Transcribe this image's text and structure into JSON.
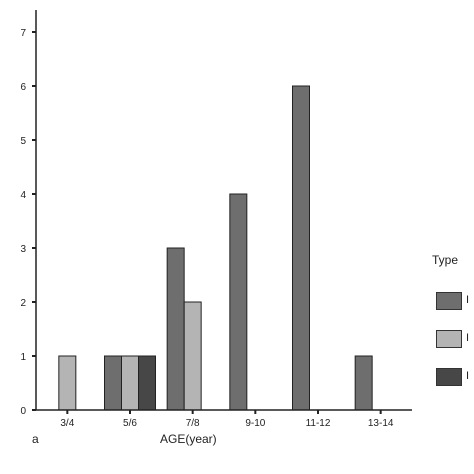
{
  "chart_data": {
    "type": "bar",
    "panel_label": "a",
    "xlabel": "AGE(year)",
    "ylabel": "",
    "ylim": [
      0,
      7
    ],
    "yticks": [
      0,
      1,
      2,
      3,
      4,
      5,
      6,
      7
    ],
    "categories": [
      "3/4",
      "5/6",
      "7/8",
      "9-10",
      "11-12",
      "13-14"
    ],
    "legend": {
      "title": "Type",
      "placement": "right"
    },
    "series": [
      {
        "name": "I",
        "color": "#6e6e6e",
        "values": [
          0,
          1,
          3,
          4,
          6,
          1
        ]
      },
      {
        "name": "I",
        "color": "#b4b4b4",
        "values": [
          1,
          1,
          2,
          0,
          0,
          0
        ]
      },
      {
        "name": "I",
        "color": "#474747",
        "values": [
          0,
          1,
          0,
          0,
          0,
          0
        ]
      }
    ]
  }
}
